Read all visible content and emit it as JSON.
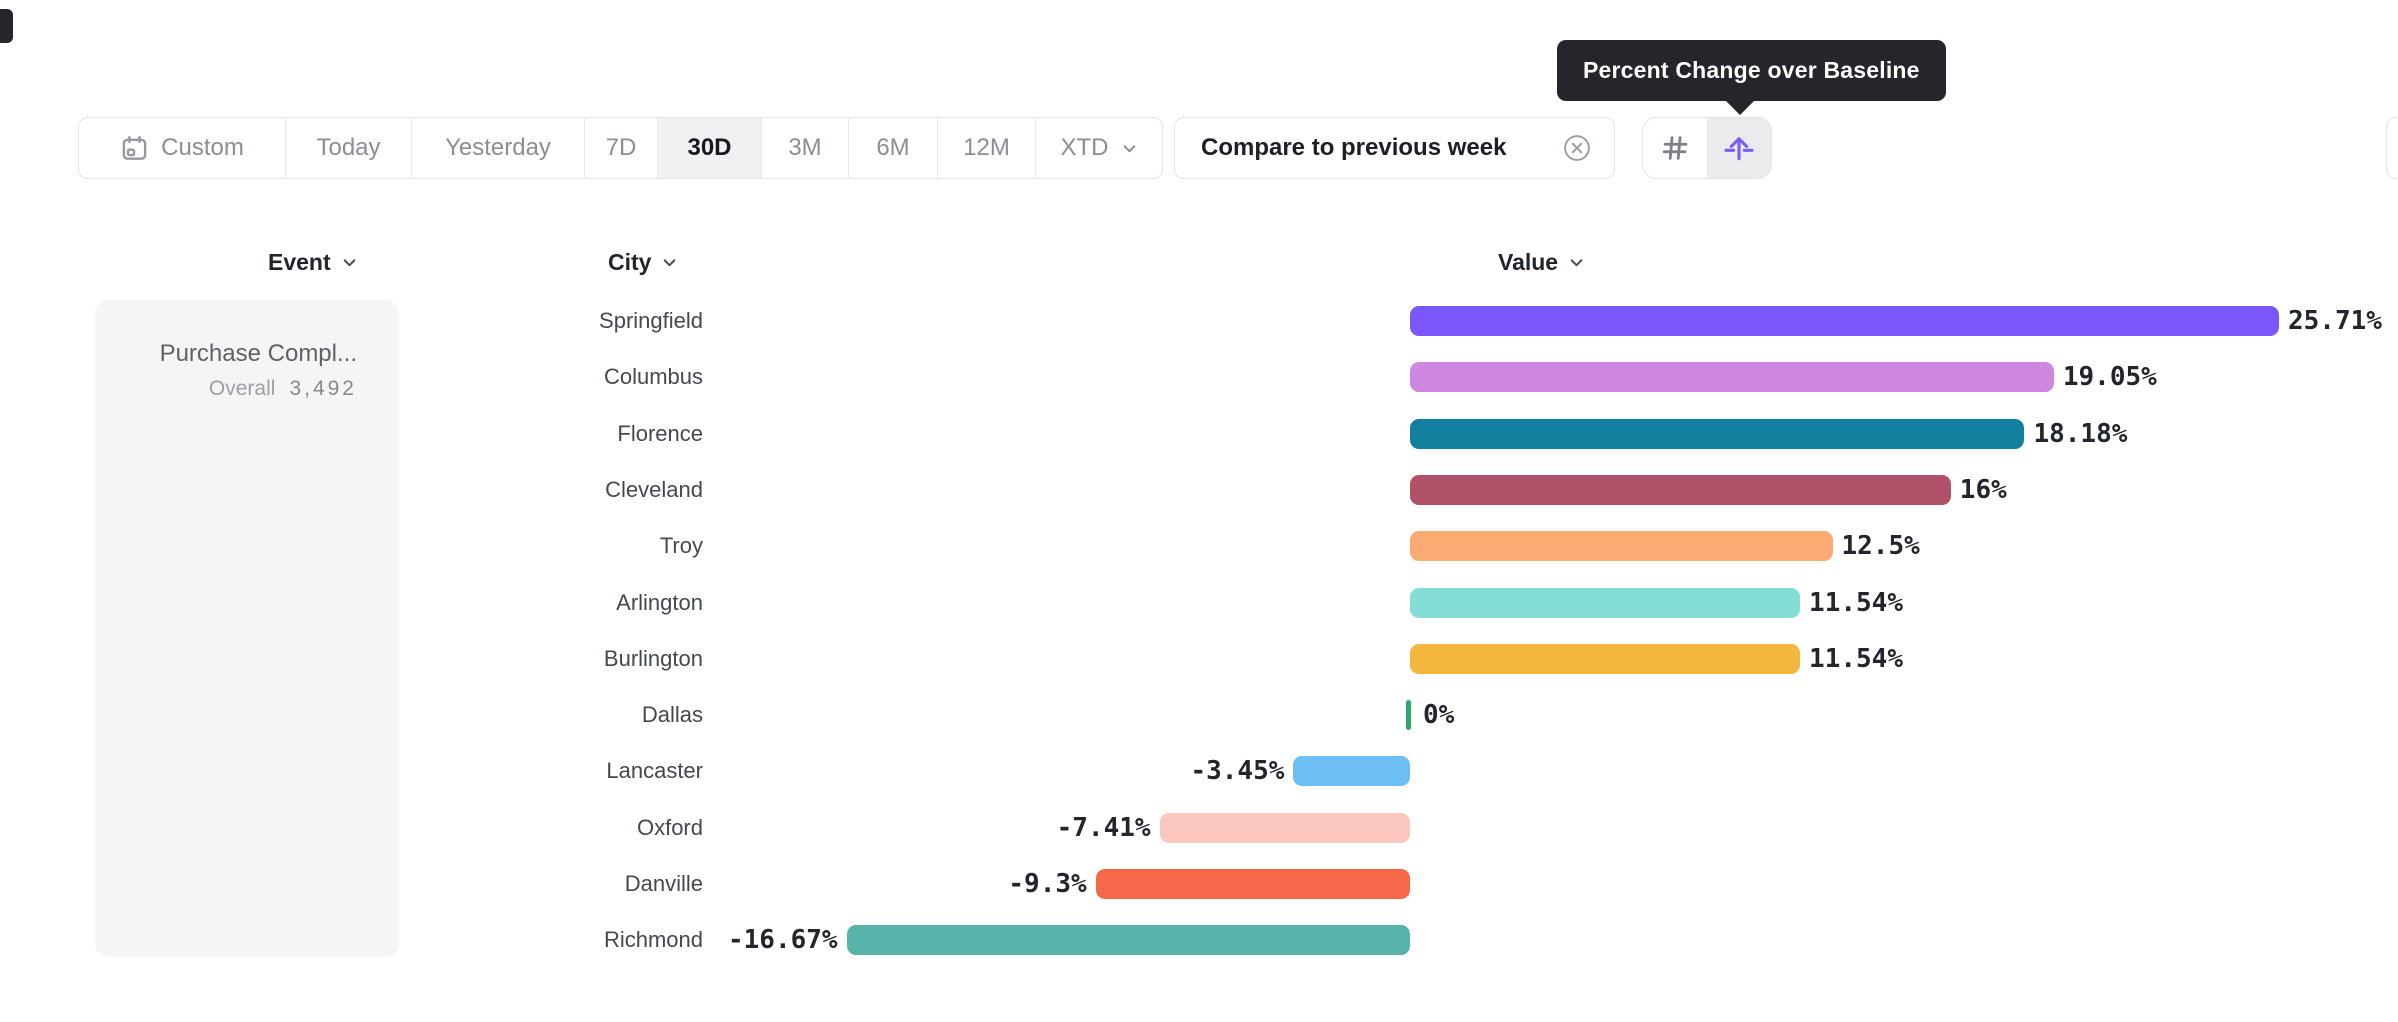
{
  "tooltip": {
    "text": "Percent Change over Baseline"
  },
  "toolbar": {
    "date_ranges": [
      {
        "label": "Custom",
        "icon": "calendar-icon",
        "selected": false
      },
      {
        "label": "Today",
        "selected": false
      },
      {
        "label": "Yesterday",
        "selected": false
      },
      {
        "label": "7D",
        "selected": false
      },
      {
        "label": "30D",
        "selected": true
      },
      {
        "label": "3M",
        "selected": false
      },
      {
        "label": "6M",
        "selected": false
      },
      {
        "label": "12M",
        "selected": false
      },
      {
        "label": "XTD",
        "selected": false,
        "has_chevron": true
      }
    ],
    "compare": {
      "label": "Compare to previous week",
      "close_icon": "x-circle-icon"
    },
    "view_toggles": [
      {
        "icon": "hash-icon",
        "selected": false
      },
      {
        "icon": "baseline-arrow-icon",
        "selected": true
      }
    ]
  },
  "columns": [
    {
      "label": "Event"
    },
    {
      "label": "City"
    },
    {
      "label": "Value"
    }
  ],
  "event_panel": {
    "event_name": "Purchase Compl...",
    "overall_label": "Overall",
    "overall_value": "3,492"
  },
  "chart_data": {
    "type": "bar",
    "orientation": "horizontal",
    "metric": "Percent Change over Baseline",
    "unit": "%",
    "baseline": 0,
    "xlim": [
      -20,
      30
    ],
    "grid": false,
    "legend": false,
    "categories": [
      "Springfield",
      "Columbus",
      "Florence",
      "Cleveland",
      "Troy",
      "Arlington",
      "Burlington",
      "Dallas",
      "Lancaster",
      "Oxford",
      "Danville",
      "Richmond"
    ],
    "values": [
      25.71,
      19.05,
      18.18,
      16,
      12.5,
      11.54,
      11.54,
      0,
      -3.45,
      -7.41,
      -9.3,
      -16.67
    ],
    "value_labels": [
      "25.71%",
      "19.05%",
      "18.18%",
      "16%",
      "12.5%",
      "11.54%",
      "11.54%",
      "0%",
      "-3.45%",
      "-7.41%",
      "-9.3%",
      "-16.67%"
    ],
    "bar_colors": [
      "#7957fb",
      "#ce87e1",
      "#11809f",
      "#b15169",
      "#fcaa73",
      "#84ded5",
      "#f4b73d",
      "#2fa768",
      "#6cbef3",
      "#fcc7be",
      "#f5684a",
      "#58b4ab"
    ]
  }
}
